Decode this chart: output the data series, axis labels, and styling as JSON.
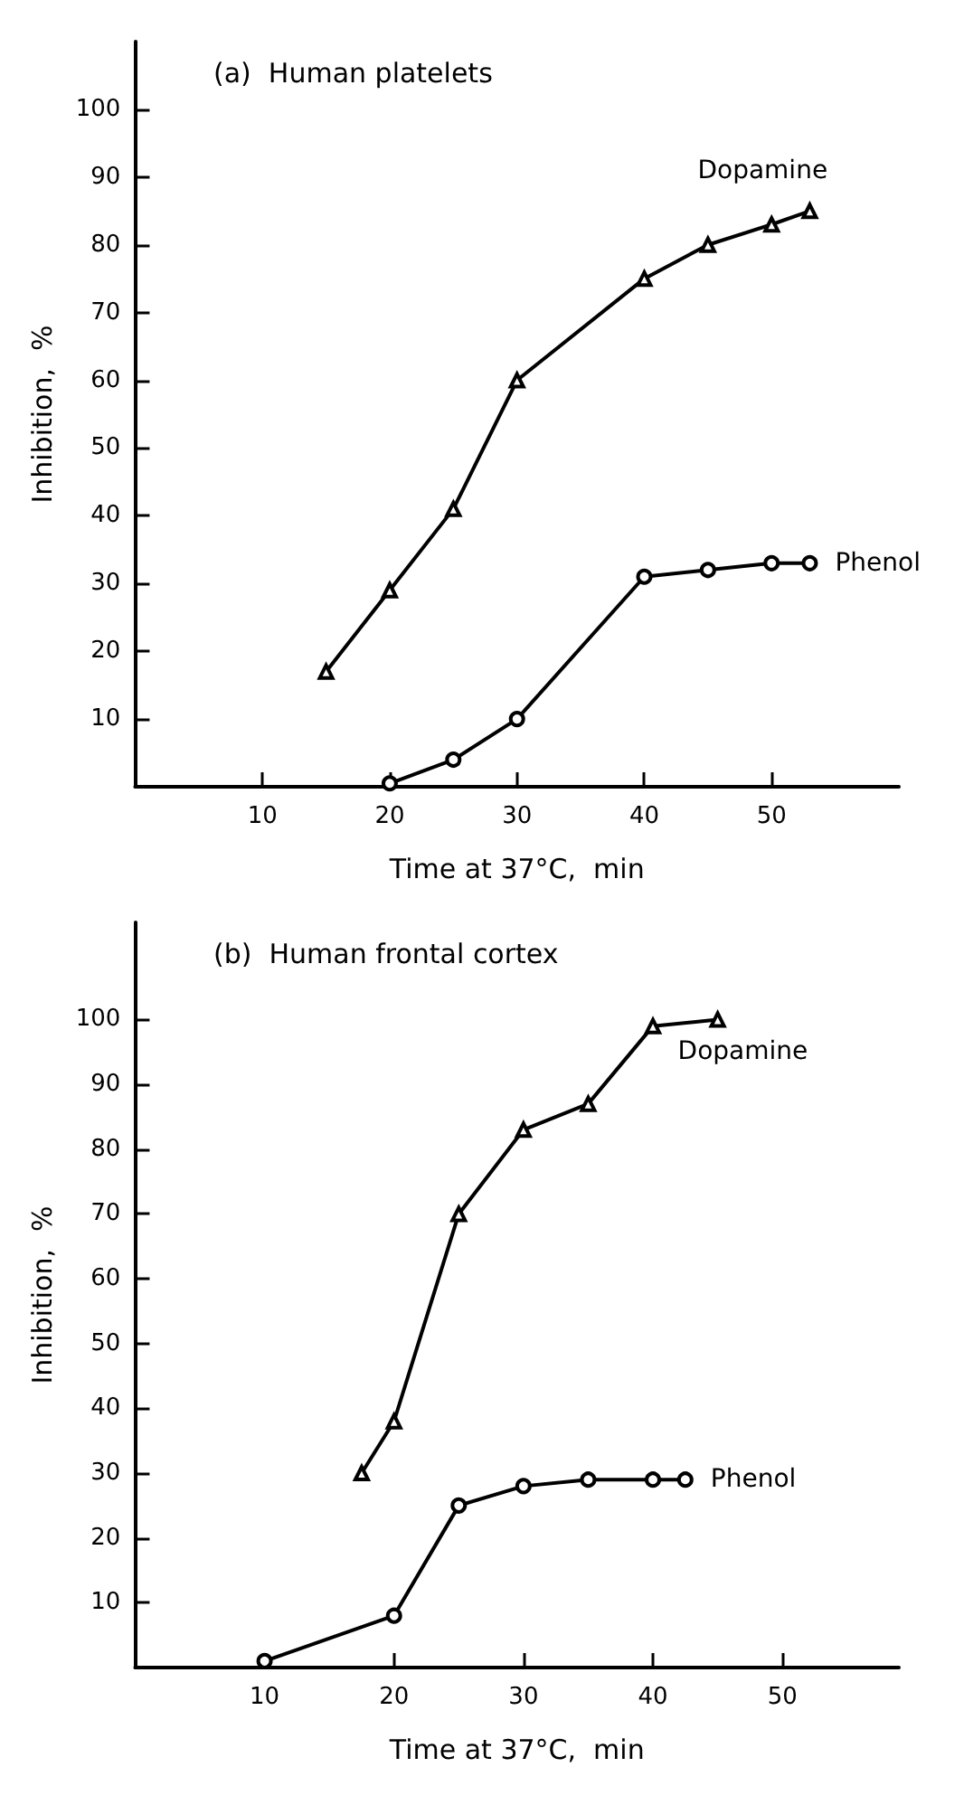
{
  "chart_data": [
    {
      "type": "line",
      "title": "(a)  Human platelets",
      "xlabel": "Time at 37°C,  min",
      "ylabel": "Inhibition,  %",
      "xlim": [
        0,
        60
      ],
      "xticks": [
        10,
        20,
        30,
        40,
        50
      ],
      "ylim": [
        0,
        110
      ],
      "yticks": [
        10,
        20,
        30,
        40,
        50,
        60,
        70,
        80,
        90,
        100
      ],
      "grid": false,
      "legend": false,
      "series": [
        {
          "name": "Dopamine",
          "color": "#000000",
          "marker": "triangle",
          "x": [
            15,
            20,
            25,
            30,
            40,
            45,
            50,
            53
          ],
          "values": [
            17,
            29,
            41,
            60,
            75,
            80,
            83,
            85
          ]
        },
        {
          "name": "Phenol",
          "color": "#000000",
          "marker": "circle",
          "x": [
            20,
            25,
            30,
            40,
            45,
            50,
            53
          ],
          "values": [
            0.5,
            4,
            10,
            31,
            32,
            33,
            33
          ]
        }
      ]
    },
    {
      "type": "line",
      "title": "(b)  Human frontal cortex",
      "xlabel": "Time at 37°C,  min",
      "ylabel": "Inhibition,  %",
      "xlim": [
        0,
        59
      ],
      "xticks": [
        10,
        20,
        30,
        40,
        50
      ],
      "ylim": [
        0,
        115
      ],
      "yticks": [
        10,
        20,
        30,
        40,
        50,
        60,
        70,
        80,
        90,
        100
      ],
      "grid": false,
      "legend": false,
      "series": [
        {
          "name": "Dopamine",
          "color": "#000000",
          "marker": "triangle",
          "x": [
            17.5,
            20,
            25,
            30,
            35,
            40,
            45
          ],
          "values": [
            30,
            38,
            70,
            83,
            87,
            99,
            100
          ]
        },
        {
          "name": "Phenol",
          "color": "#000000",
          "marker": "circle",
          "x": [
            10,
            20,
            25,
            30,
            35,
            40,
            42.5
          ],
          "values": [
            1,
            8,
            25,
            28,
            29,
            29,
            29
          ]
        }
      ]
    }
  ]
}
